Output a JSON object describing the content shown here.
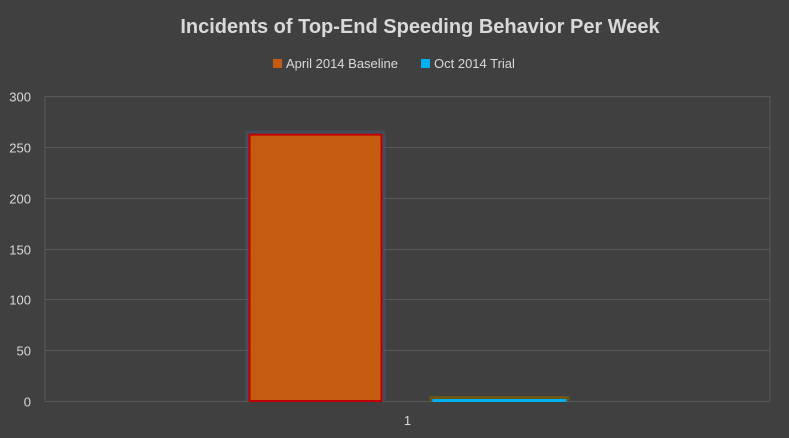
{
  "chart_data": {
    "type": "bar",
    "title": "Incidents of Top-End Speeding Behavior Per Week",
    "categories": [
      "1"
    ],
    "series": [
      {
        "name": "April 2014 Baseline",
        "values": [
          262
        ],
        "color": "#c55a11",
        "edge_color": "#c00000",
        "glow_color": "#44546a"
      },
      {
        "name": "Oct 2014 Trial",
        "values": [
          1
        ],
        "color": "#00b0f0",
        "edge_color": "#00b0f0",
        "glow_color": "#7f6000"
      }
    ],
    "xlabel": "",
    "ylabel": "",
    "ylim": [
      0,
      300
    ],
    "yticks": [
      0,
      50,
      100,
      150,
      200,
      250,
      300
    ],
    "grid": true,
    "legend_position": "top"
  },
  "colors": {
    "background": "#404040",
    "text": "#d9d9d9",
    "gridline": "#595959"
  }
}
